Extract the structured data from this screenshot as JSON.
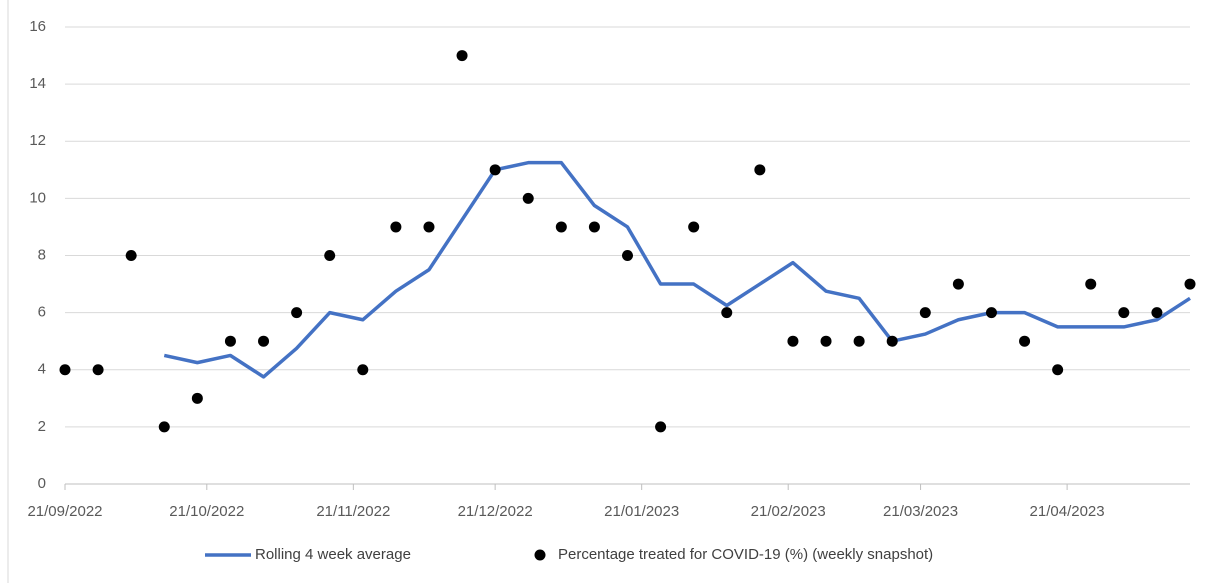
{
  "chart_data": {
    "type": "line",
    "x": [
      "2022-09-21",
      "2022-09-28",
      "2022-10-05",
      "2022-10-12",
      "2022-10-19",
      "2022-10-26",
      "2022-11-02",
      "2022-11-09",
      "2022-11-16",
      "2022-11-23",
      "2022-11-30",
      "2022-12-07",
      "2022-12-14",
      "2022-12-21",
      "2022-12-28",
      "2023-01-04",
      "2023-01-11",
      "2023-01-18",
      "2023-01-25",
      "2023-02-01",
      "2023-02-08",
      "2023-02-15",
      "2023-02-22",
      "2023-03-01",
      "2023-03-08",
      "2023-03-15",
      "2023-03-22",
      "2023-03-29",
      "2023-04-05",
      "2023-04-12",
      "2023-04-19",
      "2023-04-26",
      "2023-05-03",
      "2023-05-10",
      "2023-05-17"
    ],
    "series": [
      {
        "name": "Rolling 4 week average",
        "color": "#4472c4",
        "style": "line",
        "values": [
          null,
          null,
          null,
          4.5,
          4.25,
          4.5,
          3.75,
          4.75,
          6,
          5.75,
          6.75,
          7.5,
          9.25,
          11,
          11.25,
          11.25,
          9.75,
          9,
          7,
          7,
          6.25,
          7,
          7.75,
          6.75,
          6.5,
          5,
          5.25,
          5.75,
          6,
          6,
          5.5,
          5.5,
          5.5,
          5.75,
          6.5
        ]
      },
      {
        "name": "Percentage treated for COVID-19 (%) (weekly snapshot)",
        "color": "#000000",
        "style": "dots",
        "values": [
          4,
          4,
          8,
          2,
          3,
          5,
          5,
          6,
          8,
          4,
          9,
          9,
          15,
          11,
          10,
          9,
          9,
          8,
          2,
          9,
          6,
          11,
          5,
          5,
          5,
          5,
          6,
          7,
          6,
          5,
          4,
          7,
          6,
          6,
          7
        ]
      }
    ],
    "xlim": [
      "2022-09-21",
      "2023-05-17"
    ],
    "xticks": [
      {
        "value": "2022-09-21",
        "label": "21/09/2022"
      },
      {
        "value": "2022-10-21",
        "label": "21/10/2022"
      },
      {
        "value": "2022-11-21",
        "label": "21/11/2022"
      },
      {
        "value": "2022-12-21",
        "label": "21/12/2022"
      },
      {
        "value": "2023-01-21",
        "label": "21/01/2023"
      },
      {
        "value": "2023-02-21",
        "label": "21/02/2023"
      },
      {
        "value": "2023-03-21",
        "label": "21/03/2023"
      },
      {
        "value": "2023-04-21",
        "label": "21/04/2023"
      }
    ],
    "ylim": [
      0,
      16
    ],
    "yticks": [
      0,
      2,
      4,
      6,
      8,
      10,
      12,
      14,
      16
    ],
    "grid": true,
    "legend": "bottom"
  }
}
